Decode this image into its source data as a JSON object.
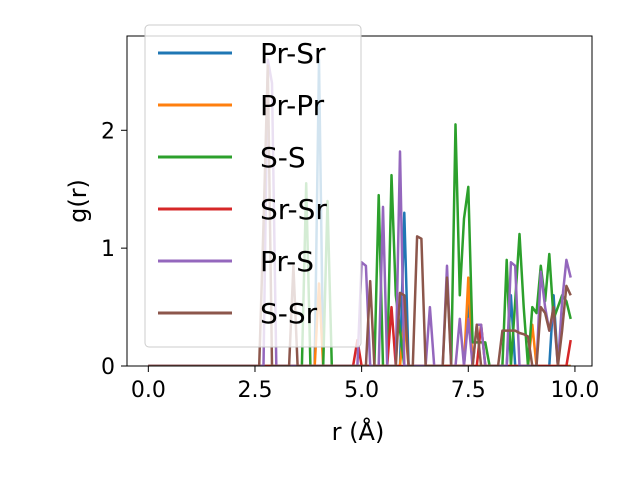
{
  "chart_data": {
    "type": "line",
    "title": "",
    "xlabel": "r (Å)",
    "ylabel": "g(r)",
    "xlim": [
      -0.5,
      10.4
    ],
    "ylim": [
      0,
      2.8
    ],
    "xticks": [
      0.0,
      2.5,
      5.0,
      7.5,
      10.0
    ],
    "xtick_labels": [
      "0.0",
      "2.5",
      "5.0",
      "7.5",
      "10.0"
    ],
    "yticks": [
      0,
      1,
      2
    ],
    "ytick_labels": [
      "0",
      "1",
      "2"
    ],
    "grid": false,
    "legend_position": "upper-left",
    "series": [
      {
        "name": "Pr-Sr",
        "color": "#1f77b4",
        "points": [
          [
            0,
            0
          ],
          [
            3.9,
            0
          ],
          [
            4.0,
            2.6
          ],
          [
            4.1,
            0
          ],
          [
            5.9,
            0
          ],
          [
            6.0,
            1.3
          ],
          [
            6.1,
            0
          ],
          [
            7.4,
            0
          ],
          [
            7.5,
            0.55
          ],
          [
            7.6,
            0
          ],
          [
            8.4,
            0
          ],
          [
            8.5,
            0.6
          ],
          [
            8.6,
            0
          ],
          [
            9.4,
            0
          ],
          [
            9.5,
            0.6
          ],
          [
            9.6,
            0
          ],
          [
            9.9,
            0
          ]
        ]
      },
      {
        "name": "Pr-Pr",
        "color": "#ff7f0e",
        "points": [
          [
            0,
            0
          ],
          [
            3.9,
            0
          ],
          [
            4.0,
            0.7
          ],
          [
            4.1,
            0
          ],
          [
            5.9,
            0
          ],
          [
            6.0,
            0.4
          ],
          [
            6.1,
            0
          ],
          [
            7.4,
            0
          ],
          [
            7.5,
            0.75
          ],
          [
            7.6,
            0
          ],
          [
            8.9,
            0
          ],
          [
            9.0,
            0.35
          ],
          [
            9.1,
            0
          ],
          [
            9.9,
            0
          ]
        ]
      },
      {
        "name": "S-S",
        "color": "#2ca02c",
        "points": [
          [
            0,
            0
          ],
          [
            3.6,
            0
          ],
          [
            3.7,
            1.55
          ],
          [
            3.8,
            0
          ],
          [
            4.1,
            0
          ],
          [
            4.2,
            1.4
          ],
          [
            4.3,
            0
          ],
          [
            5.3,
            0
          ],
          [
            5.4,
            1.45
          ],
          [
            5.5,
            0
          ],
          [
            5.6,
            0
          ],
          [
            5.7,
            1.62
          ],
          [
            5.8,
            0.6
          ],
          [
            5.9,
            0.3
          ],
          [
            6.0,
            0
          ],
          [
            7.1,
            0
          ],
          [
            7.2,
            2.05
          ],
          [
            7.3,
            0.6
          ],
          [
            7.4,
            1.25
          ],
          [
            7.5,
            1.52
          ],
          [
            7.6,
            0.2
          ],
          [
            7.8,
            0.2
          ],
          [
            7.9,
            0.2
          ],
          [
            8.0,
            0
          ],
          [
            8.3,
            0
          ],
          [
            8.4,
            0.9
          ],
          [
            8.5,
            0
          ],
          [
            8.6,
            0.55
          ],
          [
            8.7,
            1.12
          ],
          [
            8.8,
            0.5
          ],
          [
            8.9,
            0
          ],
          [
            9.0,
            0.5
          ],
          [
            9.1,
            0.45
          ],
          [
            9.2,
            0.85
          ],
          [
            9.3,
            0.55
          ],
          [
            9.4,
            0.95
          ],
          [
            9.5,
            0.4
          ],
          [
            9.6,
            0.5
          ],
          [
            9.7,
            0.6
          ],
          [
            9.8,
            0.55
          ],
          [
            9.9,
            0.4
          ]
        ]
      },
      {
        "name": "Sr-Sr",
        "color": "#d62728",
        "points": [
          [
            0,
            0
          ],
          [
            4.8,
            0
          ],
          [
            4.9,
            0.22
          ],
          [
            5.0,
            0
          ],
          [
            5.6,
            0
          ],
          [
            5.7,
            0.5
          ],
          [
            5.8,
            0
          ],
          [
            7.7,
            0
          ],
          [
            7.8,
            0.35
          ],
          [
            7.9,
            0
          ],
          [
            9.8,
            0
          ],
          [
            9.9,
            0.22
          ]
        ]
      },
      {
        "name": "Pr-S",
        "color": "#9467bd",
        "points": [
          [
            0,
            0
          ],
          [
            2.7,
            0
          ],
          [
            2.8,
            2.6
          ],
          [
            2.9,
            2.4
          ],
          [
            3.0,
            0
          ],
          [
            4.9,
            0
          ],
          [
            5.0,
            0.88
          ],
          [
            5.1,
            0.85
          ],
          [
            5.2,
            0
          ],
          [
            5.4,
            0
          ],
          [
            5.5,
            1.35
          ],
          [
            5.6,
            0
          ],
          [
            5.8,
            0
          ],
          [
            5.9,
            1.82
          ],
          [
            6.0,
            0
          ],
          [
            6.5,
            0
          ],
          [
            6.6,
            0.5
          ],
          [
            6.7,
            0
          ],
          [
            6.9,
            0
          ],
          [
            7.0,
            0.85
          ],
          [
            7.1,
            0
          ],
          [
            7.2,
            0
          ],
          [
            7.3,
            0.4
          ],
          [
            7.4,
            0
          ],
          [
            7.5,
            0.4
          ],
          [
            7.6,
            0
          ],
          [
            7.7,
            0.35
          ],
          [
            7.8,
            0.35
          ],
          [
            7.9,
            0
          ],
          [
            8.4,
            0
          ],
          [
            8.5,
            0.88
          ],
          [
            8.6,
            0.85
          ],
          [
            8.7,
            0
          ],
          [
            9.1,
            0
          ],
          [
            9.2,
            0.8
          ],
          [
            9.3,
            0.5
          ],
          [
            9.4,
            0.3
          ],
          [
            9.5,
            0.45
          ],
          [
            9.6,
            0
          ],
          [
            9.7,
            0.55
          ],
          [
            9.8,
            0.9
          ],
          [
            9.9,
            0.75
          ]
        ]
      },
      {
        "name": "S-Sr",
        "color": "#8c564b",
        "points": [
          [
            0,
            0
          ],
          [
            2.6,
            0
          ],
          [
            2.7,
            1.2
          ],
          [
            2.8,
            2.55
          ],
          [
            2.9,
            0
          ],
          [
            3.3,
            0
          ],
          [
            3.4,
            0.85
          ],
          [
            3.5,
            0
          ],
          [
            5.1,
            0
          ],
          [
            5.2,
            0.72
          ],
          [
            5.3,
            0
          ],
          [
            5.8,
            0
          ],
          [
            5.9,
            0.62
          ],
          [
            6.0,
            0.6
          ],
          [
            6.1,
            0
          ],
          [
            6.2,
            0
          ],
          [
            6.3,
            1.1
          ],
          [
            6.4,
            1.08
          ],
          [
            6.5,
            0
          ],
          [
            6.9,
            0
          ],
          [
            7.0,
            0.75
          ],
          [
            7.1,
            0
          ],
          [
            7.6,
            0
          ],
          [
            7.7,
            0.35
          ],
          [
            7.8,
            0
          ],
          [
            8.2,
            0
          ],
          [
            8.3,
            0.3
          ],
          [
            8.4,
            0.3
          ],
          [
            8.5,
            0.3
          ],
          [
            8.6,
            0.3
          ],
          [
            8.7,
            0.28
          ],
          [
            8.8,
            0.27
          ],
          [
            8.9,
            0.25
          ],
          [
            9.0,
            0
          ],
          [
            9.1,
            0
          ],
          [
            9.2,
            0.5
          ],
          [
            9.3,
            0.45
          ],
          [
            9.4,
            0.3
          ],
          [
            9.5,
            0.5
          ],
          [
            9.6,
            0
          ],
          [
            9.7,
            0.3
          ],
          [
            9.8,
            0.68
          ],
          [
            9.9,
            0.6
          ]
        ]
      }
    ]
  }
}
